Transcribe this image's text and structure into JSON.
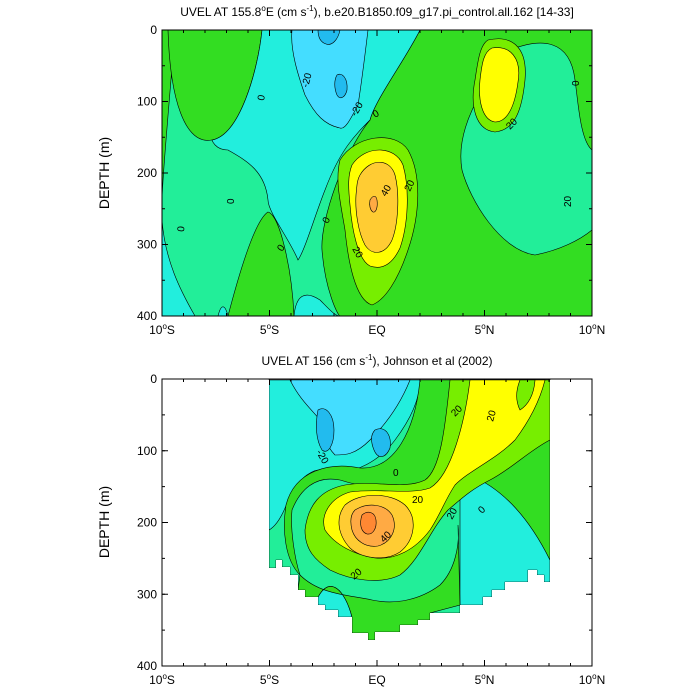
{
  "chart_data": [
    {
      "type": "heatmap",
      "title_prefix": "UVEL AT 155.8",
      "title_deg": "o",
      "title_mid": "E (cm s",
      "title_exp": "-1",
      "title_suffix": "), b.e20.B1850.f09_g17.pi_control.all.162 [14-33]",
      "ylabel": "DEPTH (m)",
      "xlim": [
        -10,
        10
      ],
      "ylim": [
        0,
        400
      ],
      "yticks": [
        "0",
        "100",
        "200",
        "300",
        "400"
      ],
      "xticks": [
        {
          "num": "10",
          "deg": "o",
          "hemi": "S"
        },
        {
          "num": "5",
          "deg": "o",
          "hemi": "S"
        },
        {
          "num": "EQ",
          "deg": "",
          "hemi": ""
        },
        {
          "num": "5",
          "deg": "o",
          "hemi": "N"
        },
        {
          "num": "10",
          "deg": "o",
          "hemi": "N"
        }
      ],
      "contour_labels": [
        "-20",
        "-20",
        "0",
        "0",
        "0",
        "0",
        "0",
        "0",
        "0",
        "20",
        "20",
        "20",
        "20",
        "40"
      ]
    },
    {
      "type": "heatmap",
      "title_prefix": "UVEL AT 156 (cm s",
      "title_exp": "-1",
      "title_suffix": "), Johnson et al (2002)",
      "ylabel": "DEPTH (m)",
      "xlim": [
        -10,
        10
      ],
      "ylim": [
        0,
        400
      ],
      "yticks": [
        "0",
        "100",
        "200",
        "300",
        "400"
      ],
      "xticks": [
        {
          "num": "10",
          "deg": "o",
          "hemi": "S"
        },
        {
          "num": "5",
          "deg": "o",
          "hemi": "S"
        },
        {
          "num": "EQ",
          "deg": "",
          "hemi": ""
        },
        {
          "num": "5",
          "deg": "o",
          "hemi": "N"
        },
        {
          "num": "10",
          "deg": "o",
          "hemi": "N"
        }
      ],
      "contour_labels": [
        "-20",
        "0",
        "20",
        "20",
        "20",
        "20",
        "20",
        "40",
        "0"
      ]
    }
  ],
  "colors": {
    "level_m30": "#22bbee",
    "level_m20": "#44ddff",
    "level_m10": "#22eedd",
    "level_0": "#22ee99",
    "level_10": "#33dd22",
    "level_20": "#77ee00",
    "level_30": "#ffff00",
    "level_40": "#ffcc33",
    "level_50": "#ffaa44",
    "level_60": "#ff8833",
    "missing": "#ffffff"
  }
}
